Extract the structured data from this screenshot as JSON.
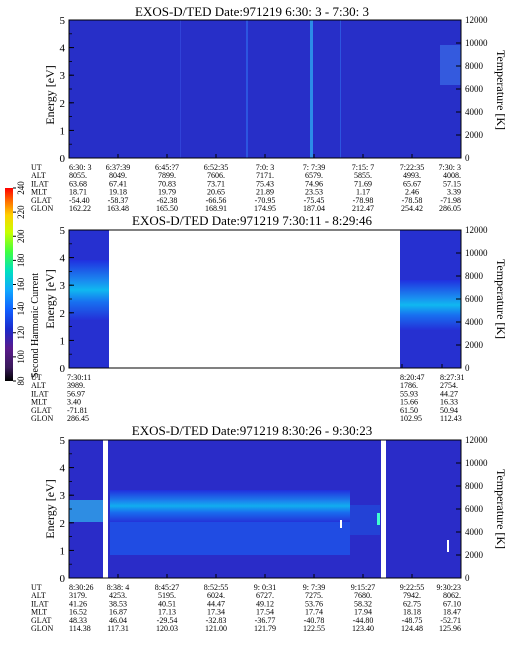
{
  "colorbar": {
    "label": "Second Harmonic Current",
    "ticks": [
      "80",
      "100",
      "120",
      "140",
      "160",
      "180",
      "200",
      "220",
      "240"
    ],
    "colors": [
      "#000000",
      "#3a1a5a",
      "#5a1a8c",
      "#1a2acc",
      "#1060ff",
      "#10a8ff",
      "#00e0c0",
      "#40ff40",
      "#c8ff00",
      "#ffd000",
      "#ff7000",
      "#ff0000"
    ]
  },
  "panels": [
    {
      "title": "EXOS-D/TED   Date:971219  6:30: 3 - 7:30: 3",
      "ylabel": "Energy [eV]",
      "y2label": "Temperature [K]",
      "yticks": [
        "0",
        "1",
        "2",
        "3",
        "4",
        "5"
      ],
      "y2ticks": [
        "0",
        "2000",
        "4000",
        "6000",
        "8000",
        "10000",
        "12000"
      ],
      "footer_labels": [
        "UT",
        "ALT",
        "ILAT",
        "MLT",
        "GLAT",
        "GLON"
      ],
      "footer_columns": [
        [
          "6:30: 3",
          "8055.",
          "63.68",
          "18.71",
          "-54.40",
          "162.22"
        ],
        [
          "6:37:39",
          "8049.",
          "67.41",
          "19.18",
          "-58.37",
          "163.48"
        ],
        [
          "6:45:?7",
          "7899.",
          "70.83",
          "19.79",
          "-62.38",
          "165.50"
        ],
        [
          "6:52:35",
          "7606.",
          "73.71",
          "20.65",
          "-66.56",
          "168.91"
        ],
        [
          "7:0: 3",
          "7171.",
          "75.43",
          "21.89",
          "-70.95",
          "174.95"
        ],
        [
          "7: 7:39",
          "6579.",
          "74.96",
          "23.53",
          "-75.45",
          "187.04"
        ],
        [
          "7:15: 7",
          "5855.",
          "71.69",
          "1.17",
          "-78.98",
          "212.47"
        ],
        [
          "7:22:35",
          "4993.",
          "65.67",
          "2.46",
          "-78.58",
          "254.42"
        ],
        [
          "7:30: 3",
          "4008.",
          "57.15",
          "3.39",
          "-71.98",
          "286.05"
        ]
      ]
    },
    {
      "title": "EXOS-D/TED   Date:971219  7:30:11 - 8:29:46",
      "ylabel": "Energy [eV]",
      "y2label": "Temperature [K]",
      "yticks": [
        "0",
        "1",
        "2",
        "3",
        "4",
        "5"
      ],
      "y2ticks": [
        "0",
        "2000",
        "4000",
        "6000",
        "8000",
        "10000",
        "12000"
      ],
      "footer_labels": [
        "UT",
        "ALT",
        "ILAT",
        "MLT",
        "GLAT",
        "GLON"
      ],
      "footer_columns": [
        [
          "7:30:11",
          "3989.",
          "56.97",
          "3.40",
          "-71.81",
          "286.45"
        ],
        [
          "8:20:47",
          "1786.",
          "55.93",
          "15.66",
          "61.50",
          "102.95"
        ],
        [
          "8:27:31",
          "2754.",
          "44.27",
          "16.33",
          "50.94",
          "112.43"
        ]
      ]
    },
    {
      "title": "EXOS-D/TED   Date:971219  8:30:26 - 9:30:23",
      "ylabel": "Energy [eV]",
      "y2label": "Temperature [K]",
      "yticks": [
        "0",
        "1",
        "2",
        "3",
        "4",
        "5"
      ],
      "y2ticks": [
        "0",
        "2000",
        "4000",
        "6000",
        "8000",
        "10000",
        "12000"
      ],
      "footer_labels": [
        "UT",
        "ALT",
        "ILAT",
        "MLT",
        "GLAT",
        "GLON"
      ],
      "footer_columns": [
        [
          "8:30:26",
          "3179.",
          "41.26",
          "16.52",
          "48.33",
          "114.38"
        ],
        [
          "8:38: 4",
          "4253.",
          "38.53",
          "16.87",
          "46.04",
          "117.31"
        ],
        [
          "8:45:27",
          "5195.",
          "40.51",
          "17.13",
          "-29.54",
          "120.03"
        ],
        [
          "8:52:55",
          "6024.",
          "44.47",
          "17.34",
          "-32.83",
          "121.00"
        ],
        [
          "9: 0:31",
          "6727.",
          "49.12",
          "17.54",
          "-36.77",
          "121.79"
        ],
        [
          "9: 7:39",
          "7275.",
          "53.76",
          "17.74",
          "-40.78",
          "122.55"
        ],
        [
          "9:15:27",
          "7680.",
          "58.32",
          "17.94",
          "-44.80",
          "123.40"
        ],
        [
          "9:22:55",
          "7942.",
          "62.75",
          "18.18",
          "-48.75",
          "124.48"
        ],
        [
          "9:30:23",
          "8062.",
          "67.10",
          "18.47",
          "-52.71",
          "125.96"
        ]
      ]
    }
  ],
  "chart_data": [
    {
      "type": "heatmap",
      "title": "EXOS-D/TED   Date:971219  6:30: 3 - 7:30: 3",
      "xlabel": "UT",
      "ylabel": "Energy [eV]",
      "y2label": "Temperature [K]",
      "ylim": [
        0,
        5
      ],
      "y2lim": [
        0,
        12000
      ],
      "colorbar_label": "Second Harmonic Current",
      "colorbar_range": [
        80,
        240
      ],
      "x_ticks": [
        "6:30: 3",
        "6:37:39",
        "6:45:?7",
        "6:52:35",
        "7:0: 3",
        "7: 7:39",
        "7:15: 7",
        "7:22:35",
        "7:30: 3"
      ]
    },
    {
      "type": "heatmap",
      "title": "EXOS-D/TED   Date:971219  7:30:11 - 8:29:46",
      "xlabel": "UT",
      "ylabel": "Energy [eV]",
      "y2label": "Temperature [K]",
      "ylim": [
        0,
        5
      ],
      "y2lim": [
        0,
        12000
      ],
      "colorbar_label": "Second Harmonic Current",
      "colorbar_range": [
        80,
        240
      ],
      "x_ticks": [
        "7:30:11",
        "8:20:47",
        "8:27:31"
      ]
    },
    {
      "type": "heatmap",
      "title": "EXOS-D/TED   Date:971219  8:30:26 - 9:30:23",
      "xlabel": "UT",
      "ylabel": "Energy [eV]",
      "y2label": "Temperature [K]",
      "ylim": [
        0,
        5
      ],
      "y2lim": [
        0,
        12000
      ],
      "colorbar_label": "Second Harmonic Current",
      "colorbar_range": [
        80,
        240
      ],
      "x_ticks": [
        "8:30:26",
        "8:38: 4",
        "8:45:27",
        "8:52:55",
        "9: 0:31",
        "9: 7:39",
        "9:15:27",
        "9:22:55",
        "9:30:23"
      ]
    }
  ]
}
